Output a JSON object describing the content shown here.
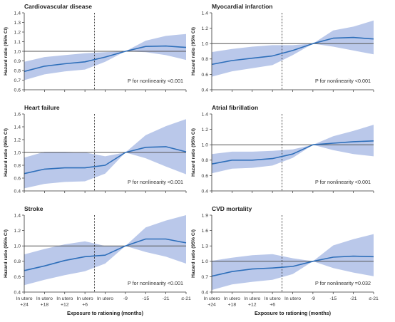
{
  "figure": {
    "x_tick_labels": [
      "In utero\n+24",
      "In utero\n+18",
      "In utero\n+12",
      "In utero\n+6",
      "In utero",
      "-9",
      "-15",
      "-21",
      "≤-21"
    ],
    "x_axis_label": "Exposure to rationing (months)",
    "y_axis_label": "Hazard ratio (95% CI)",
    "colors": {
      "line": "#2e6fba",
      "band": "#8fa6dd",
      "reference_line": "#555555",
      "divider": "#222222"
    }
  },
  "chart_data": [
    {
      "type": "line",
      "title": "Cardiovascular disease",
      "ylim": [
        0.6,
        1.4
      ],
      "yticks": [
        0.6,
        0.7,
        0.8,
        0.9,
        1.0,
        1.1,
        1.2,
        1.3,
        1.4
      ],
      "reference_y": 1.0,
      "annotation": "P for nonlinearity <0.001",
      "x": [
        0,
        1,
        2,
        3,
        4,
        5,
        6,
        7,
        8
      ],
      "estimate": [
        0.79,
        0.845,
        0.87,
        0.89,
        0.94,
        1.0,
        1.05,
        1.055,
        1.04
      ],
      "ci_lower": [
        0.7,
        0.76,
        0.79,
        0.81,
        0.89,
        1.0,
        0.99,
        0.96,
        0.91
      ],
      "ci_upper": [
        0.89,
        0.94,
        0.96,
        0.98,
        0.99,
        1.0,
        1.11,
        1.16,
        1.18
      ]
    },
    {
      "type": "line",
      "title": "Myocardial infarction",
      "ylim": [
        0.4,
        1.4
      ],
      "yticks": [
        0.4,
        0.6,
        0.8,
        1.0,
        1.2,
        1.4
      ],
      "reference_y": 1.0,
      "annotation": "P for nonlinearity <0.001",
      "x": [
        0,
        1,
        2,
        3,
        4,
        5,
        6,
        7,
        8
      ],
      "estimate": [
        0.73,
        0.78,
        0.81,
        0.84,
        0.91,
        1.0,
        1.07,
        1.08,
        1.06
      ],
      "ci_lower": [
        0.57,
        0.64,
        0.68,
        0.72,
        0.85,
        1.0,
        0.96,
        0.91,
        0.86
      ],
      "ci_upper": [
        0.89,
        0.93,
        0.96,
        0.98,
        0.98,
        1.0,
        1.17,
        1.22,
        1.3
      ]
    },
    {
      "type": "line",
      "title": "Heart failure",
      "ylim": [
        0.4,
        1.6
      ],
      "yticks": [
        0.4,
        0.6,
        0.8,
        1.0,
        1.2,
        1.4,
        1.6
      ],
      "reference_y": 1.0,
      "annotation": "P for nonlinearity <0.001",
      "x": [
        0,
        1,
        2,
        3,
        4,
        5,
        6,
        7,
        8
      ],
      "estimate": [
        0.67,
        0.74,
        0.76,
        0.76,
        0.8,
        1.0,
        1.08,
        1.09,
        1.01
      ],
      "ci_lower": [
        0.44,
        0.51,
        0.54,
        0.55,
        0.67,
        1.0,
        0.91,
        0.78,
        0.66
      ],
      "ci_upper": [
        0.92,
        1.01,
        1.01,
        1.0,
        0.94,
        1.0,
        1.27,
        1.41,
        1.52
      ]
    },
    {
      "type": "line",
      "title": "Atrial fibrillation",
      "ylim": [
        0.4,
        1.4
      ],
      "yticks": [
        0.4,
        0.6,
        0.8,
        1.0,
        1.2,
        1.4
      ],
      "reference_y": 1.0,
      "annotation": "P for nonlinearity <0.001",
      "x": [
        0,
        1,
        2,
        3,
        4,
        5,
        6,
        7,
        8
      ],
      "estimate": [
        0.75,
        0.8,
        0.8,
        0.82,
        0.88,
        1.0,
        1.02,
        1.04,
        1.05
      ],
      "ci_lower": [
        0.63,
        0.69,
        0.7,
        0.73,
        0.83,
        1.0,
        0.93,
        0.88,
        0.85
      ],
      "ci_upper": [
        0.88,
        0.91,
        0.91,
        0.92,
        0.94,
        1.0,
        1.11,
        1.18,
        1.26
      ]
    },
    {
      "type": "line",
      "title": "Stroke",
      "ylim": [
        0.4,
        1.4
      ],
      "yticks": [
        0.4,
        0.6,
        0.8,
        1.0,
        1.2,
        1.4
      ],
      "reference_y": 1.0,
      "annotation": "P for nonlinearity <0.001",
      "x": [
        0,
        1,
        2,
        3,
        4,
        5,
        6,
        7,
        8
      ],
      "estimate": [
        0.68,
        0.74,
        0.81,
        0.86,
        0.88,
        1.0,
        1.09,
        1.09,
        1.04
      ],
      "ci_lower": [
        0.49,
        0.56,
        0.62,
        0.67,
        0.77,
        1.0,
        0.92,
        0.86,
        0.77
      ],
      "ci_upper": [
        0.89,
        0.96,
        1.02,
        1.06,
        1.0,
        1.0,
        1.24,
        1.33,
        1.4
      ]
    },
    {
      "type": "line",
      "title": "CVD mortality",
      "ylim": [
        0.4,
        1.9
      ],
      "yticks": [
        0.4,
        0.7,
        1.0,
        1.3,
        1.6,
        1.9
      ],
      "reference_y": 1.0,
      "annotation": "P for nonlinearity =0.032",
      "x": [
        0,
        1,
        2,
        3,
        4,
        5,
        6,
        7,
        8
      ],
      "estimate": [
        0.71,
        0.8,
        0.85,
        0.87,
        0.9,
        1.0,
        1.08,
        1.1,
        1.09
      ],
      "ci_lower": [
        0.44,
        0.55,
        0.6,
        0.64,
        0.75,
        1.0,
        0.87,
        0.78,
        0.71
      ],
      "ci_upper": [
        1.01,
        1.07,
        1.12,
        1.14,
        1.06,
        1.0,
        1.31,
        1.43,
        1.53
      ]
    }
  ]
}
